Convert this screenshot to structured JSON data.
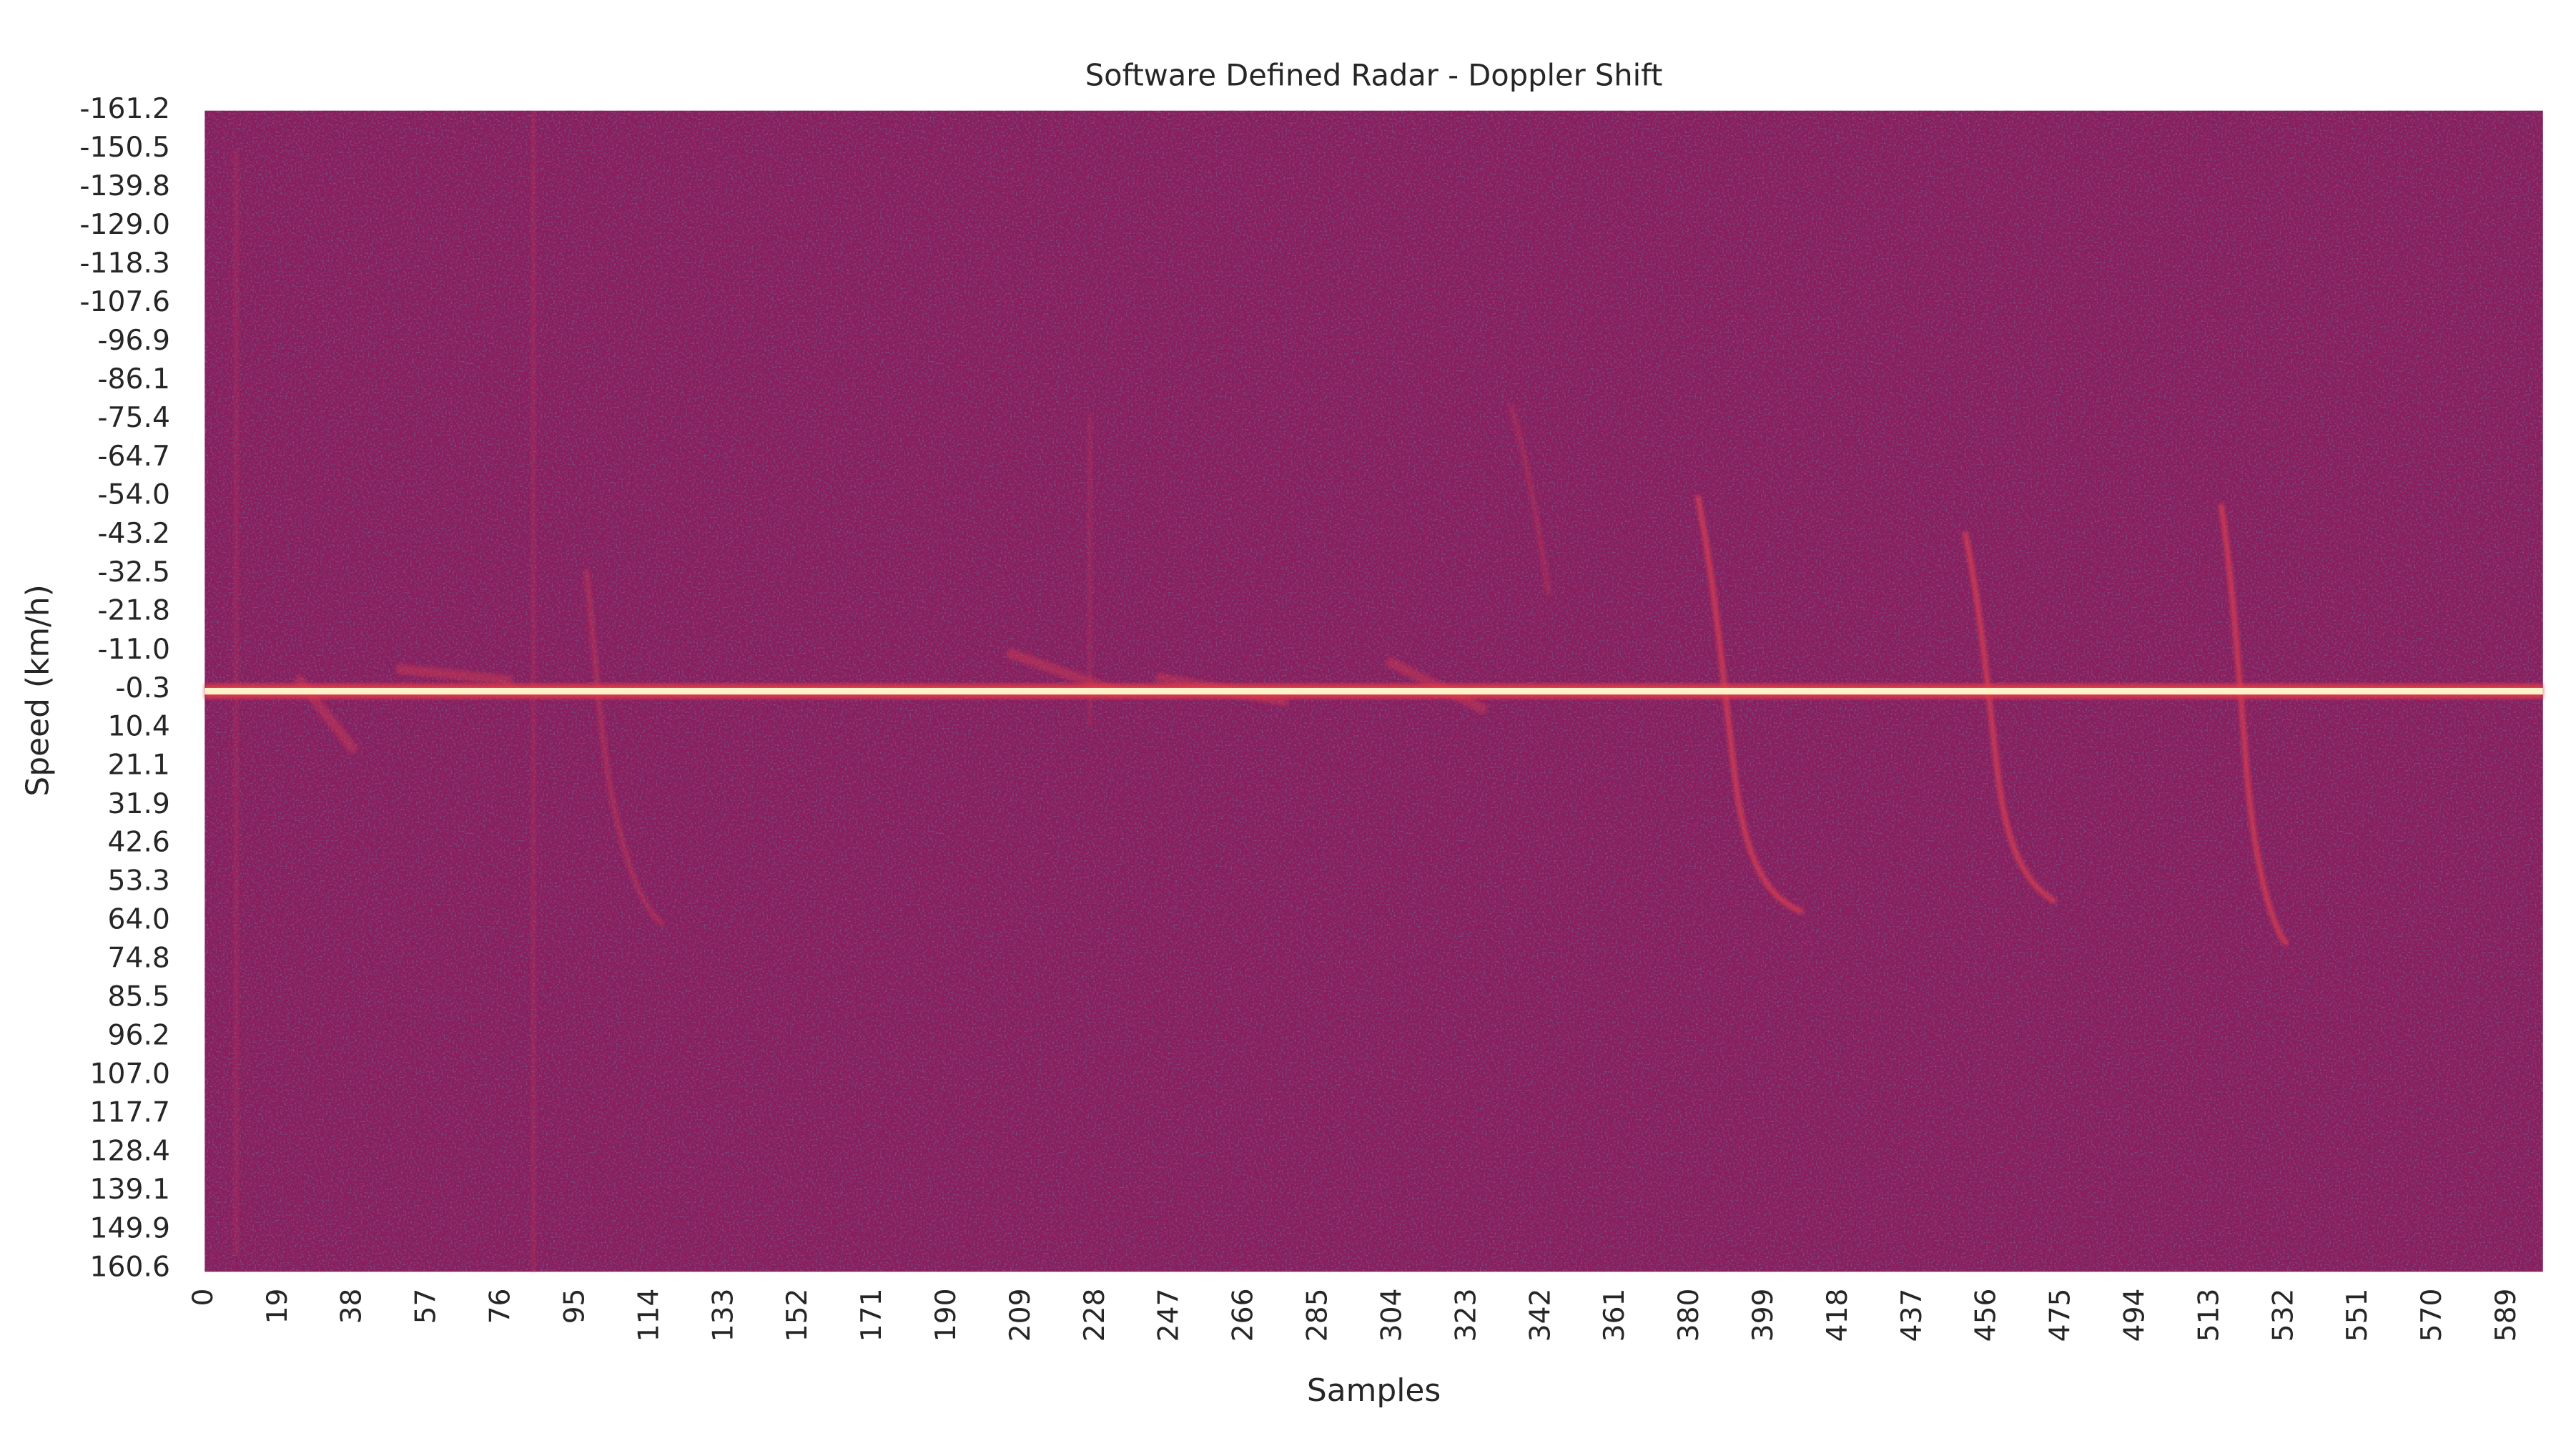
{
  "chart_data": {
    "type": "heatmap",
    "title": "Software Defined Radar - Doppler Shift",
    "xlabel": "Samples",
    "ylabel": "Speed (km/h)",
    "xlim": [
      0,
      598
    ],
    "xticks": [
      0,
      19,
      38,
      57,
      76,
      95,
      114,
      133,
      152,
      171,
      190,
      209,
      228,
      247,
      266,
      285,
      304,
      323,
      342,
      361,
      380,
      399,
      418,
      437,
      456,
      475,
      494,
      513,
      532,
      551,
      570,
      589
    ],
    "ylim": [
      -161.2,
      161.5
    ],
    "yticks": [
      -161.2,
      -150.5,
      -139.8,
      {
        "value": -129,
        "label": "-129.0"
      },
      -118.3,
      -107.6,
      -96.9,
      -86.1,
      -75.4,
      -64.7,
      {
        "value": -54,
        "label": "-54.0"
      },
      -43.2,
      -32.5,
      -21.8,
      {
        "value": -11,
        "label": "-11.0"
      },
      -0.3,
      10.4,
      21.1,
      31.9,
      42.6,
      53.3,
      {
        "value": 64,
        "label": "64.0"
      },
      74.8,
      85.5,
      96.2,
      {
        "value": 107,
        "label": "107.0"
      },
      117.7,
      128.4,
      139.1,
      149.9,
      160.6
    ],
    "colors": {
      "low": "#8a1d5c",
      "high": "#fff2c8"
    }
  }
}
